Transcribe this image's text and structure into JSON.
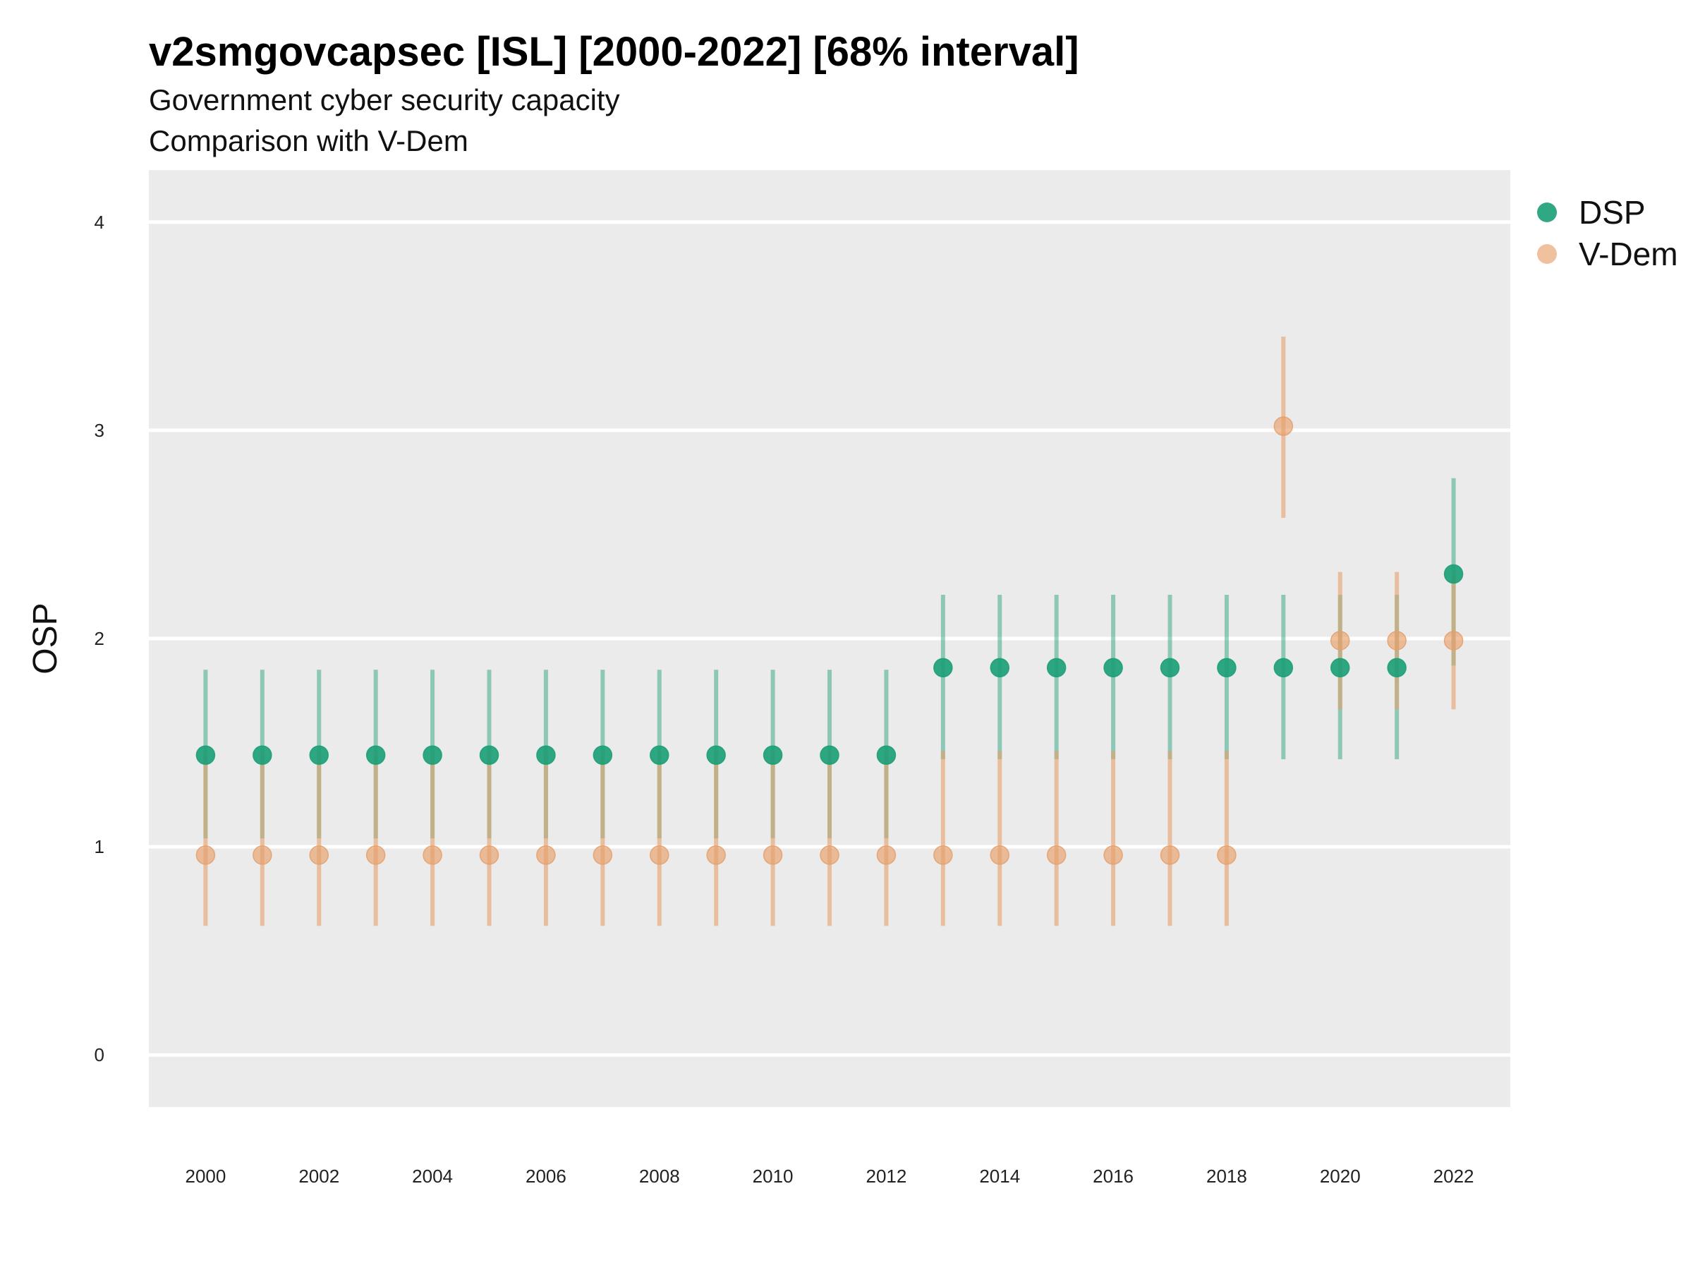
{
  "chart_data": {
    "type": "scatter",
    "title": "v2smgovcapsec [ISL] [2000-2022] [68% interval]",
    "subtitle": [
      "Government cyber security capacity",
      "Comparison with V-Dem"
    ],
    "xlabel": "",
    "ylabel": "OSP",
    "x": [
      2000,
      2001,
      2002,
      2003,
      2004,
      2005,
      2006,
      2007,
      2008,
      2009,
      2010,
      2011,
      2012,
      2013,
      2014,
      2015,
      2016,
      2017,
      2018,
      2019,
      2020,
      2021,
      2022
    ],
    "xticks": [
      2000,
      2002,
      2004,
      2006,
      2008,
      2010,
      2012,
      2014,
      2016,
      2018,
      2020,
      2022
    ],
    "yticks": [
      0,
      1,
      2,
      3,
      4
    ],
    "xlim": [
      1999,
      2023
    ],
    "ylim": [
      -0.25,
      4.25
    ],
    "grid": true,
    "legend_position": "right",
    "series": [
      {
        "name": "DSP",
        "color": "#1b9e77",
        "values": [
          1.44,
          1.44,
          1.44,
          1.44,
          1.44,
          1.44,
          1.44,
          1.44,
          1.44,
          1.44,
          1.44,
          1.44,
          1.44,
          1.86,
          1.86,
          1.86,
          1.86,
          1.86,
          1.86,
          1.86,
          1.86,
          1.86,
          2.31
        ],
        "lower": [
          1.04,
          1.04,
          1.04,
          1.04,
          1.04,
          1.04,
          1.04,
          1.04,
          1.04,
          1.04,
          1.04,
          1.04,
          1.04,
          1.42,
          1.42,
          1.42,
          1.42,
          1.42,
          1.42,
          1.42,
          1.42,
          1.42,
          1.87
        ],
        "upper": [
          1.85,
          1.85,
          1.85,
          1.85,
          1.85,
          1.85,
          1.85,
          1.85,
          1.85,
          1.85,
          1.85,
          1.85,
          1.85,
          2.21,
          2.21,
          2.21,
          2.21,
          2.21,
          2.21,
          2.21,
          2.21,
          2.21,
          2.77
        ]
      },
      {
        "name": "V-Dem",
        "color": "#e6a06a",
        "values": [
          0.96,
          0.96,
          0.96,
          0.96,
          0.96,
          0.96,
          0.96,
          0.96,
          0.96,
          0.96,
          0.96,
          0.96,
          0.96,
          0.96,
          0.96,
          0.96,
          0.96,
          0.96,
          0.96,
          3.02,
          1.99,
          1.99,
          1.99
        ],
        "lower": [
          0.62,
          0.62,
          0.62,
          0.62,
          0.62,
          0.62,
          0.62,
          0.62,
          0.62,
          0.62,
          0.62,
          0.62,
          0.62,
          0.62,
          0.62,
          0.62,
          0.62,
          0.62,
          0.62,
          2.58,
          1.66,
          1.66,
          1.66
        ],
        "upper": [
          1.46,
          1.46,
          1.46,
          1.46,
          1.46,
          1.46,
          1.46,
          1.46,
          1.46,
          1.46,
          1.46,
          1.46,
          1.46,
          1.46,
          1.46,
          1.46,
          1.46,
          1.46,
          1.46,
          3.45,
          2.32,
          2.32,
          2.32
        ]
      }
    ]
  }
}
